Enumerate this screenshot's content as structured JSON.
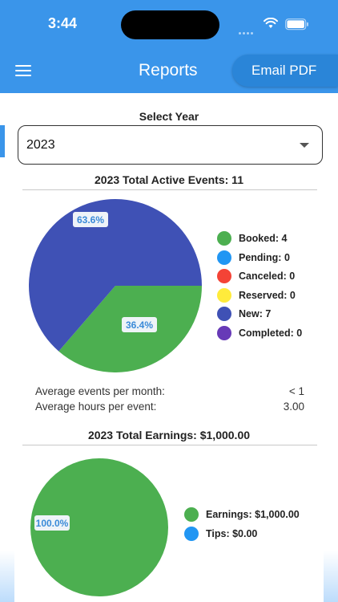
{
  "status_bar": {
    "time": "3:44"
  },
  "header": {
    "title": "Reports",
    "email_button": "Email PDF"
  },
  "year_select": {
    "label": "Select Year",
    "value": "2023"
  },
  "events": {
    "title": "2023 Total Active Events: 11",
    "chart_data": {
      "type": "pie",
      "slices": [
        {
          "name": "Booked",
          "value": 4,
          "percent_label": "36.4%",
          "color": "#4caf50"
        },
        {
          "name": "New",
          "value": 7,
          "percent_label": "63.6%",
          "color": "#3f51b5"
        }
      ]
    },
    "legend": [
      {
        "label": "Booked: 4",
        "color": "#4caf50"
      },
      {
        "label": "Pending: 0",
        "color": "#2196f3"
      },
      {
        "label": "Canceled: 0",
        "color": "#f44336"
      },
      {
        "label": "Reserved: 0",
        "color": "#ffeb3b"
      },
      {
        "label": "New: 7",
        "color": "#3f51b5"
      },
      {
        "label": "Completed: 0",
        "color": "#673ab7"
      }
    ],
    "stats": [
      {
        "label": "Average events per month:",
        "value": "< 1"
      },
      {
        "label": "Average hours per event:",
        "value": "3.00"
      }
    ]
  },
  "earnings": {
    "title": "2023 Total Earnings: $1,000.00",
    "chart_data": {
      "type": "pie",
      "slices": [
        {
          "name": "Earnings",
          "value": 1000.0,
          "percent_label": "100.0%",
          "color": "#4caf50"
        }
      ]
    },
    "legend": [
      {
        "label": "Earnings: $1,000.00",
        "color": "#4caf50"
      },
      {
        "label": "Tips: $0.00",
        "color": "#2196f3"
      }
    ]
  }
}
